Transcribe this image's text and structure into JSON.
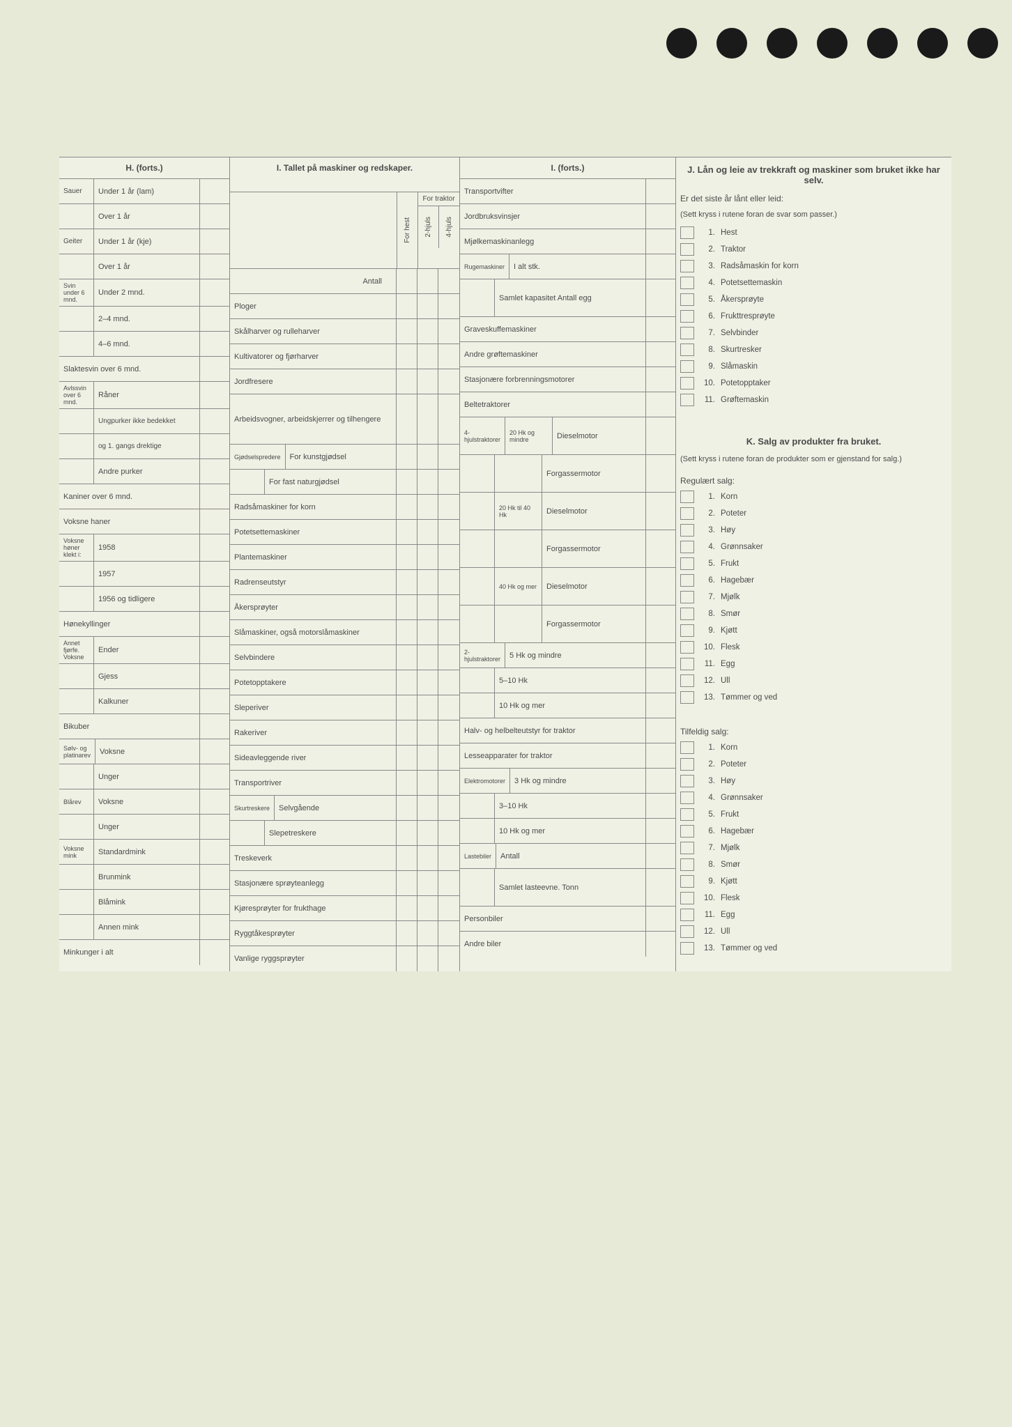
{
  "h": {
    "title": "H. (forts.)",
    "groups": [
      {
        "stub": "Sauer",
        "rows": [
          "Under 1 år (lam)",
          "Over 1 år"
        ]
      },
      {
        "stub": "Geiter",
        "rows": [
          "Under 1 år (kje)",
          "Over 1 år"
        ]
      },
      {
        "stub": "Svin under 6 mnd.",
        "rows": [
          "Under 2 mnd.",
          "2–4 mnd.",
          "4–6 mnd."
        ]
      }
    ],
    "singles1": [
      "Slaktesvin over 6 mnd."
    ],
    "avls": {
      "stub": "Avlssvin over 6 mnd.",
      "rows": [
        "Råner",
        "Ungpurker ikke bedekket",
        "og 1. gangs drektige",
        "Andre purker"
      ]
    },
    "singles2": [
      "Kaniner over 6 mnd.",
      "Voksne haner"
    ],
    "honer": {
      "stub": "Voksne høner klekt i:",
      "rows": [
        "1958",
        "1957",
        "1956 og tidligere"
      ]
    },
    "singles3": [
      "Hønekyllinger"
    ],
    "fjorfe": {
      "stub": "Annet fjørfe. Voksne",
      "rows": [
        "Ender",
        "Gjess",
        "Kalkuner"
      ]
    },
    "singles4": [
      "Bikuber"
    ],
    "solv": {
      "stub": "Sølv- og platinarev",
      "rows": [
        "Voksne",
        "Unger"
      ]
    },
    "bla": {
      "stub": "Blårev",
      "rows": [
        "Voksne",
        "Unger"
      ]
    },
    "mink": {
      "stub": "Voksne mink",
      "rows": [
        "Standardmink",
        "Brunmink",
        "Blåmink",
        "Annen mink"
      ]
    },
    "singles5": [
      "Minkunger i alt"
    ]
  },
  "i1": {
    "title": "I. Tallet på maskiner og redskaper.",
    "forhest": "For hest",
    "fortraktor": "For traktor",
    "hjuls2": "2-hjuls",
    "hjuls4": "4-hjuls",
    "antall": "Antall",
    "rows": [
      "Ploger",
      "Skålharver og rulleharver",
      "Kultivatorer og fjørharver",
      "Jordfresere",
      "Arbeidsvogner, arbeidskjerrer og tilhengere"
    ],
    "gjodsel": {
      "stub": "Gjødselspredere",
      "rows": [
        "For kunstgjødsel",
        "For fast naturgjødsel"
      ]
    },
    "rows2": [
      "Radsåmaskiner for korn",
      "Potetsettemaskiner",
      "Plantemaskiner",
      "Radrenseutstyr",
      "Åkersprøyter",
      "Slåmaskiner, også motorslåmaskiner",
      "Selvbindere",
      "Potetopptakere",
      "Sleperiver",
      "Rakeriver",
      "Sideavleggende river",
      "Transportriver"
    ],
    "skurt": {
      "stub": "Skurtreskere",
      "rows": [
        "Selvgående",
        "Slepetreskere"
      ]
    },
    "rows3": [
      "Treskeverk",
      "Stasjonære sprøyteanlegg",
      "Kjøresprøyter for frukthage",
      "Ryggtåkesprøyter",
      "Vanlige ryggsprøyter"
    ]
  },
  "i2": {
    "title": "I. (forts.)",
    "singles1": [
      "Transportvifter",
      "Jordbruksvinsjer",
      "Mjølkemaskinanlegg"
    ],
    "ruge": {
      "stub": "Rugemaskiner",
      "rows": [
        "I alt stk.",
        "Samlet kapasitet Antall egg"
      ]
    },
    "singles2": [
      "Graveskuffemaskiner",
      "Andre grøftemaskiner",
      "Stasjonære forbrenningsmotorer",
      "Beltetraktorer"
    ],
    "trak4": {
      "stub": "4-hjulstraktorer",
      "groups": [
        {
          "sub": "20 Hk og mindre",
          "rows": [
            "Dieselmotor",
            "Forgassermotor"
          ]
        },
        {
          "sub": "20 Hk til 40 Hk",
          "rows": [
            "Dieselmotor",
            "Forgassermotor"
          ]
        },
        {
          "sub": "40 Hk og mer",
          "rows": [
            "Dieselmotor",
            "Forgassermotor"
          ]
        }
      ]
    },
    "trak2": {
      "stub": "2-hjulstraktorer",
      "rows": [
        "5 Hk og mindre",
        "5–10 Hk",
        "10 Hk og mer"
      ]
    },
    "singles3": [
      "Halv- og helbelteutstyr for traktor",
      "Lesseapparater for traktor"
    ],
    "elektro": {
      "stub": "Elektromotorer",
      "rows": [
        "3 Hk og mindre",
        "3–10 Hk",
        "10 Hk og mer"
      ]
    },
    "laste": {
      "stub": "Lastebiler",
      "rows": [
        "Antall",
        "Samlet lasteevne. Tonn"
      ]
    },
    "singles4": [
      "Personbiler",
      "Andre biler"
    ]
  },
  "j": {
    "title": "J. Lån og leie av trekkraft og maskiner som bruket ikke har selv.",
    "sub": "Er det siste år lånt eller leid:",
    "note": "(Sett kryss i rutene foran de svar som passer.)",
    "items": [
      "Hest",
      "Traktor",
      "Radsåmaskin for korn",
      "Potetsettemaskin",
      "Åkersprøyte",
      "Frukttresprøyte",
      "Selvbinder",
      "Skurtresker",
      "Slåmaskin",
      "Potetopptaker",
      "Grøftemaskin"
    ]
  },
  "k": {
    "title": "K. Salg av produkter fra bruket.",
    "note": "(Sett kryss i rutene foran de produkter som er gjenstand for salg.)",
    "reg": "Regulært salg:",
    "tilf": "Tilfeldig salg:",
    "items": [
      "Korn",
      "Poteter",
      "Høy",
      "Grønnsaker",
      "Frukt",
      "Hagebær",
      "Mjølk",
      "Smør",
      "Kjøtt",
      "Flesk",
      "Egg",
      "Ull",
      "Tømmer og ved"
    ]
  }
}
